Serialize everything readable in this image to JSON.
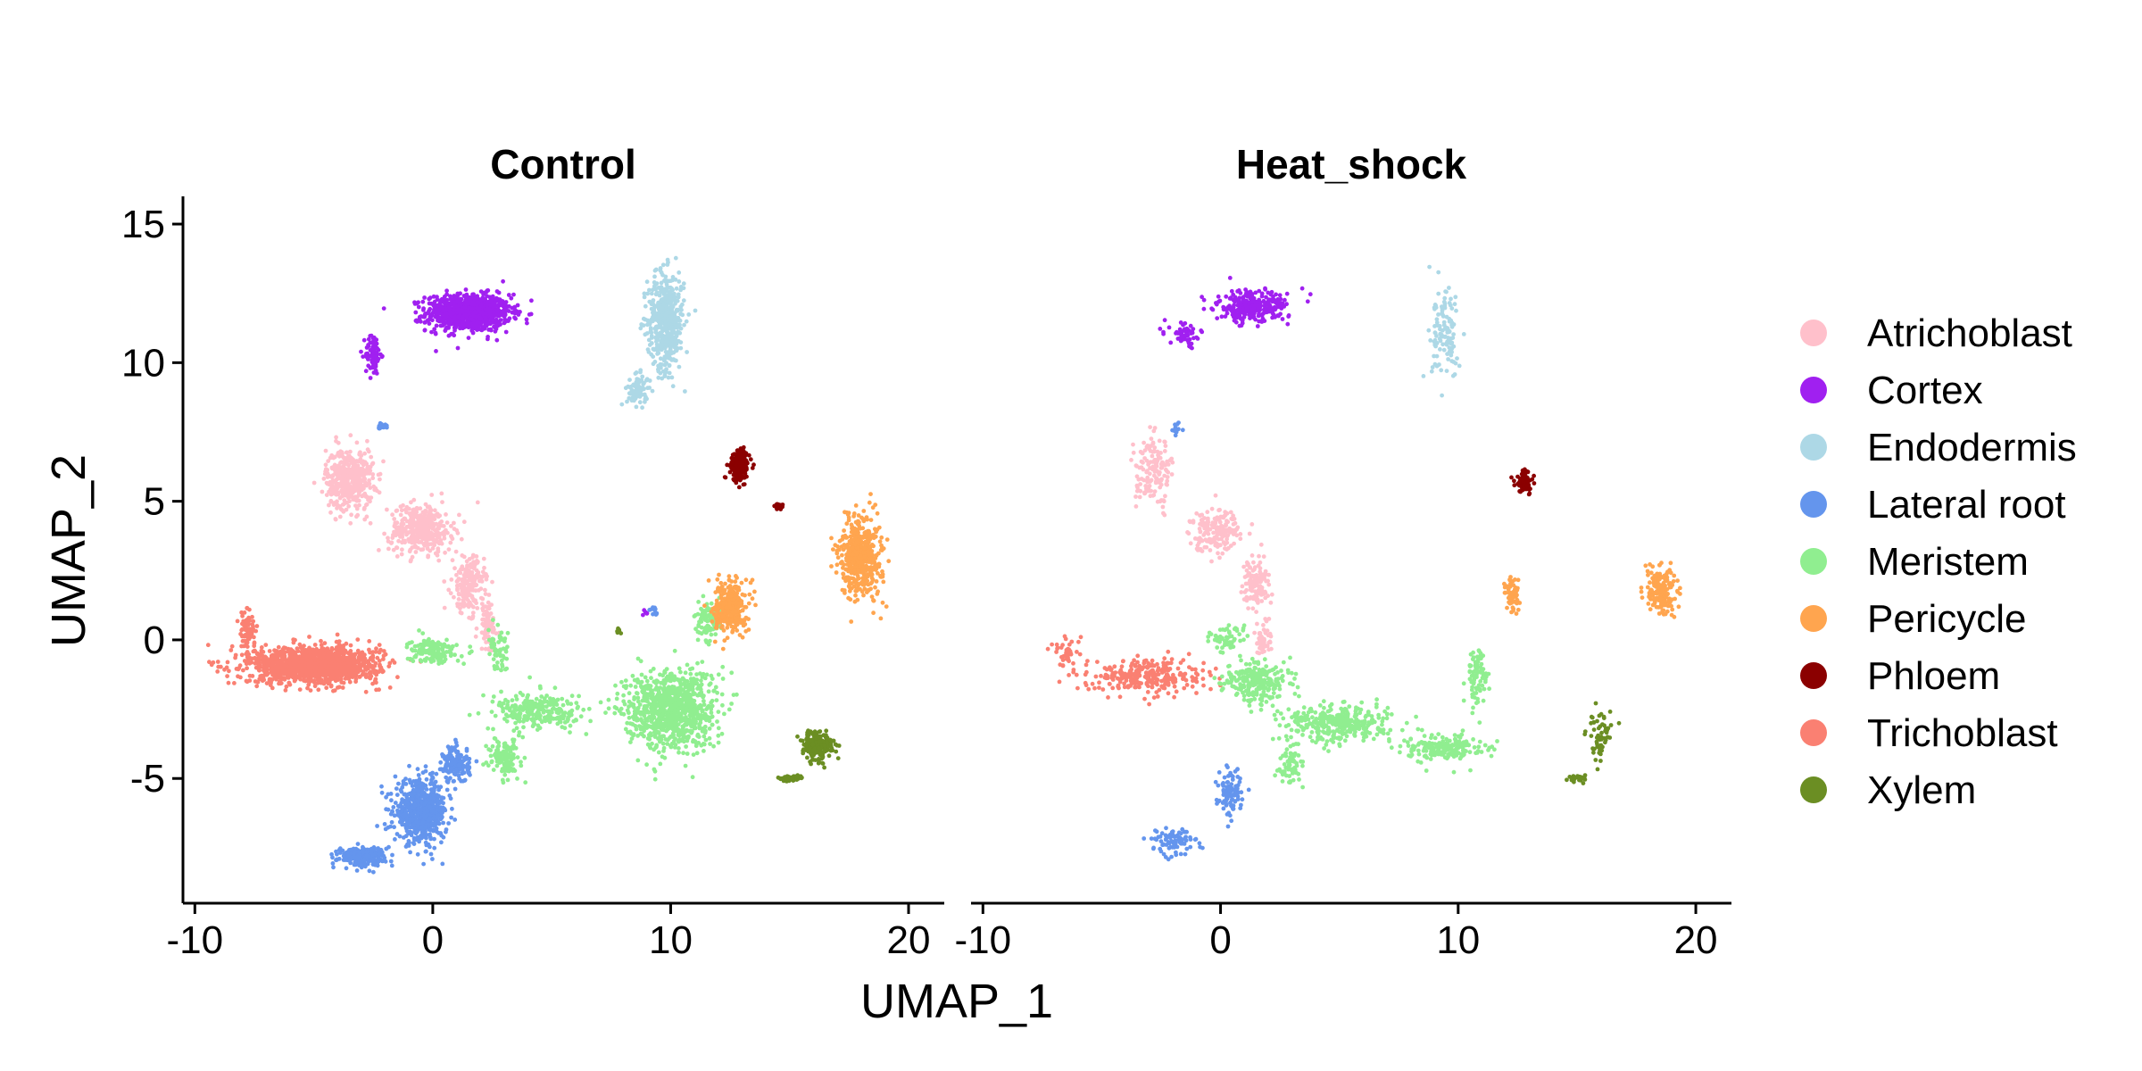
{
  "chart_data": {
    "type": "scatter",
    "xlabel": "UMAP_1",
    "ylabel": "UMAP_2",
    "xlim": [
      -10.5,
      21.5
    ],
    "ylim": [
      -9.5,
      16
    ],
    "x_ticks": [
      -10,
      0,
      10,
      20
    ],
    "x_tick_labels": [
      "-10",
      "0",
      "10",
      "20"
    ],
    "y_ticks": [
      -5,
      0,
      5,
      10,
      15
    ],
    "y_tick_labels": [
      "-5",
      "0",
      "5",
      "10",
      "15"
    ],
    "grid": false,
    "legend_position": "right",
    "legend": [
      {
        "name": "Atrichoblast",
        "color": "#FFC0CB"
      },
      {
        "name": "Cortex",
        "color": "#A020F0"
      },
      {
        "name": "Endodermis",
        "color": "#ADD8E6"
      },
      {
        "name": "Lateral root",
        "color": "#6495ED"
      },
      {
        "name": "Meristem",
        "color": "#90EE90"
      },
      {
        "name": "Pericycle",
        "color": "#FFA54F"
      },
      {
        "name": "Phloem",
        "color": "#8B0000"
      },
      {
        "name": "Trichoblast",
        "color": "#FA8072"
      },
      {
        "name": "Xylem",
        "color": "#6B8E23"
      }
    ],
    "facets": [
      {
        "title": "Control",
        "clusters": [
          {
            "series": "Cortex",
            "center": [
              1.5,
              11.8
            ],
            "spread": [
              1.6,
              0.6
            ],
            "n": 900
          },
          {
            "series": "Cortex",
            "center": [
              -2.5,
              10.3
            ],
            "spread": [
              0.3,
              0.7
            ],
            "n": 80
          },
          {
            "series": "Endodermis",
            "center": [
              9.8,
              11.5
            ],
            "spread": [
              0.7,
              1.6
            ],
            "n": 500
          },
          {
            "series": "Endodermis",
            "center": [
              8.6,
              9.0
            ],
            "spread": [
              0.4,
              0.5
            ],
            "n": 80
          },
          {
            "series": "Atrichoblast",
            "center": [
              -3.5,
              5.8
            ],
            "spread": [
              0.9,
              1.0
            ],
            "n": 450
          },
          {
            "series": "Atrichoblast",
            "center": [
              -0.5,
              4.0
            ],
            "spread": [
              1.2,
              0.8
            ],
            "n": 400
          },
          {
            "series": "Atrichoblast",
            "center": [
              1.5,
              2.0
            ],
            "spread": [
              0.6,
              0.9
            ],
            "n": 200
          },
          {
            "series": "Atrichoblast",
            "center": [
              2.3,
              0.5
            ],
            "spread": [
              0.4,
              0.8
            ],
            "n": 80
          },
          {
            "series": "Lateral root",
            "center": [
              -2.2,
              7.7
            ],
            "spread": [
              0.2,
              0.1
            ],
            "n": 15
          },
          {
            "series": "Lateral root",
            "center": [
              -0.5,
              -6.2
            ],
            "spread": [
              1.0,
              1.0
            ],
            "n": 600
          },
          {
            "series": "Lateral root",
            "center": [
              -3.0,
              -7.8
            ],
            "spread": [
              0.9,
              0.3
            ],
            "n": 250
          },
          {
            "series": "Lateral root",
            "center": [
              1.0,
              -4.5
            ],
            "spread": [
              0.5,
              0.6
            ],
            "n": 150
          },
          {
            "series": "Lateral root",
            "center": [
              9.3,
              1.0
            ],
            "spread": [
              0.2,
              0.2
            ],
            "n": 12
          },
          {
            "series": "Trichoblast",
            "center": [
              -5.0,
              -0.9
            ],
            "spread": [
              2.5,
              0.6
            ],
            "n": 1300
          },
          {
            "series": "Trichoblast",
            "center": [
              -7.8,
              0.4
            ],
            "spread": [
              0.3,
              0.6
            ],
            "n": 80
          },
          {
            "series": "Meristem",
            "center": [
              10.0,
              -2.5
            ],
            "spread": [
              1.7,
              1.3
            ],
            "n": 900
          },
          {
            "series": "Meristem",
            "center": [
              4.5,
              -2.6
            ],
            "spread": [
              1.8,
              0.6
            ],
            "n": 250
          },
          {
            "series": "Meristem",
            "center": [
              0.0,
              -0.4
            ],
            "spread": [
              0.9,
              0.4
            ],
            "n": 150
          },
          {
            "series": "Meristem",
            "center": [
              3.0,
              -4.2
            ],
            "spread": [
              0.6,
              0.6
            ],
            "n": 120
          },
          {
            "series": "Meristem",
            "center": [
              2.8,
              -0.5
            ],
            "spread": [
              0.4,
              0.7
            ],
            "n": 60
          },
          {
            "series": "Meristem",
            "center": [
              11.6,
              0.6
            ],
            "spread": [
              0.5,
              0.6
            ],
            "n": 100
          },
          {
            "series": "Pericycle",
            "center": [
              12.5,
              1.2
            ],
            "spread": [
              0.6,
              0.9
            ],
            "n": 300
          },
          {
            "series": "Pericycle",
            "center": [
              18.0,
              3.0
            ],
            "spread": [
              0.8,
              1.3
            ],
            "n": 500
          },
          {
            "series": "Phloem",
            "center": [
              12.9,
              6.3
            ],
            "spread": [
              0.35,
              0.5
            ],
            "n": 220
          },
          {
            "series": "Phloem",
            "center": [
              14.5,
              4.8
            ],
            "spread": [
              0.2,
              0.1
            ],
            "n": 25
          },
          {
            "series": "Xylem",
            "center": [
              16.2,
              -3.8
            ],
            "spread": [
              0.6,
              0.5
            ],
            "n": 200
          },
          {
            "series": "Xylem",
            "center": [
              15.0,
              -5.0
            ],
            "spread": [
              0.5,
              0.1
            ],
            "n": 50
          },
          {
            "series": "Xylem",
            "center": [
              7.8,
              0.3
            ],
            "spread": [
              0.1,
              0.1
            ],
            "n": 8
          },
          {
            "series": "Cortex",
            "center": [
              8.9,
              1.0
            ],
            "spread": [
              0.1,
              0.1
            ],
            "n": 5
          }
        ]
      },
      {
        "title": "Heat_shock",
        "clusters": [
          {
            "series": "Cortex",
            "center": [
              1.3,
              12.0
            ],
            "spread": [
              1.4,
              0.5
            ],
            "n": 280
          },
          {
            "series": "Cortex",
            "center": [
              -1.5,
              11.0
            ],
            "spread": [
              0.6,
              0.4
            ],
            "n": 60
          },
          {
            "series": "Endodermis",
            "center": [
              9.5,
              11.0
            ],
            "spread": [
              0.6,
              1.4
            ],
            "n": 120
          },
          {
            "series": "Atrichoblast",
            "center": [
              -2.8,
              6.0
            ],
            "spread": [
              0.7,
              1.1
            ],
            "n": 150
          },
          {
            "series": "Atrichoblast",
            "center": [
              -0.2,
              4.0
            ],
            "spread": [
              1.0,
              0.7
            ],
            "n": 180
          },
          {
            "series": "Atrichoblast",
            "center": [
              1.5,
              2.0
            ],
            "spread": [
              0.5,
              0.8
            ],
            "n": 120
          },
          {
            "series": "Atrichoblast",
            "center": [
              1.8,
              0.0
            ],
            "spread": [
              0.3,
              0.7
            ],
            "n": 50
          },
          {
            "series": "Lateral root",
            "center": [
              -1.8,
              7.6
            ],
            "spread": [
              0.2,
              0.2
            ],
            "n": 12
          },
          {
            "series": "Lateral root",
            "center": [
              0.4,
              -5.5
            ],
            "spread": [
              0.5,
              0.8
            ],
            "n": 100
          },
          {
            "series": "Lateral root",
            "center": [
              -2.0,
              -7.3
            ],
            "spread": [
              0.9,
              0.4
            ],
            "n": 90
          },
          {
            "series": "Trichoblast",
            "center": [
              -3.0,
              -1.3
            ],
            "spread": [
              2.2,
              0.6
            ],
            "n": 280
          },
          {
            "series": "Trichoblast",
            "center": [
              -6.5,
              -0.5
            ],
            "spread": [
              0.6,
              0.5
            ],
            "n": 40
          },
          {
            "series": "Meristem",
            "center": [
              5.0,
              -3.0
            ],
            "spread": [
              2.0,
              0.6
            ],
            "n": 350
          },
          {
            "series": "Meristem",
            "center": [
              9.5,
              -3.9
            ],
            "spread": [
              1.4,
              0.4
            ],
            "n": 200
          },
          {
            "series": "Meristem",
            "center": [
              1.5,
              -1.5
            ],
            "spread": [
              1.2,
              0.7
            ],
            "n": 250
          },
          {
            "series": "Meristem",
            "center": [
              10.8,
              -1.3
            ],
            "spread": [
              0.4,
              0.9
            ],
            "n": 90
          },
          {
            "series": "Meristem",
            "center": [
              3.0,
              -4.5
            ],
            "spread": [
              0.5,
              0.6
            ],
            "n": 70
          },
          {
            "series": "Meristem",
            "center": [
              0.2,
              0.0
            ],
            "spread": [
              0.6,
              0.4
            ],
            "n": 60
          },
          {
            "series": "Pericycle",
            "center": [
              12.3,
              1.6
            ],
            "spread": [
              0.3,
              0.7
            ],
            "n": 60
          },
          {
            "series": "Pericycle",
            "center": [
              18.5,
              1.8
            ],
            "spread": [
              0.6,
              0.8
            ],
            "n": 160
          },
          {
            "series": "Phloem",
            "center": [
              12.8,
              5.7
            ],
            "spread": [
              0.35,
              0.4
            ],
            "n": 80
          },
          {
            "series": "Xylem",
            "center": [
              16.0,
              -3.5
            ],
            "spread": [
              0.5,
              0.8
            ],
            "n": 60
          },
          {
            "series": "Xylem",
            "center": [
              15.0,
              -5.0
            ],
            "spread": [
              0.4,
              0.1
            ],
            "n": 25
          }
        ]
      }
    ]
  }
}
